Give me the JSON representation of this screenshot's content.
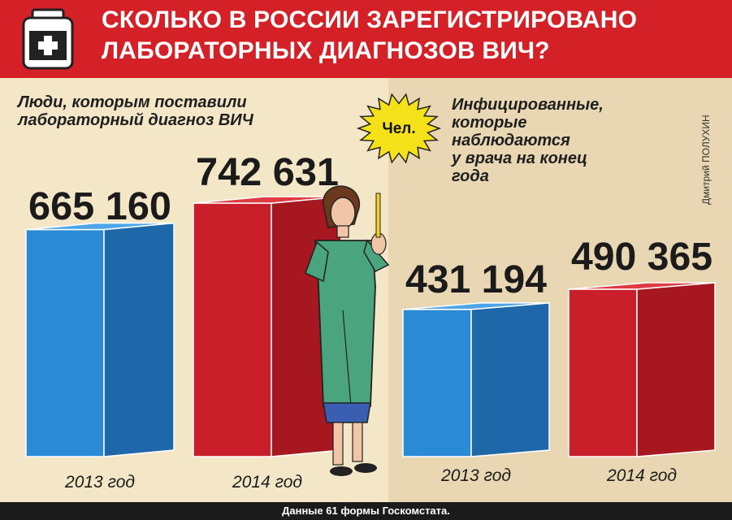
{
  "header": {
    "title_line1": "СКОЛЬКО В РОССИИ ЗАРЕГИСТРИРОВАНО",
    "title_line2": "ЛАБОРАТОРНЫХ ДИАГНОЗОВ ВИЧ?"
  },
  "unit_badge": "Чел.",
  "credit": "Дмитрий ПОЛУХИН",
  "footer": "Данные  61 формы Госкомстата.",
  "colors": {
    "header": "#d42027",
    "blue": "#2a8ad6",
    "red": "#c91f2a",
    "bg_left": "#f3e7c7",
    "bg_right": "#e8d7b2"
  },
  "chart_data": [
    {
      "type": "bar",
      "title": "Люди, которым поставили\nлабораторный диагноз ВИЧ",
      "categories": [
        "2013 год",
        "2014 год"
      ],
      "values": [
        665160,
        742631
      ],
      "value_labels": [
        "665 160",
        "742 631"
      ]
    },
    {
      "type": "bar",
      "title": "Инфицированные,\nкоторые\nнаблюдаются\nу врача на конец\nгода",
      "categories": [
        "2013 год",
        "2014 год"
      ],
      "values": [
        431194,
        490365
      ],
      "value_labels": [
        "431 194",
        "490 365"
      ]
    }
  ]
}
